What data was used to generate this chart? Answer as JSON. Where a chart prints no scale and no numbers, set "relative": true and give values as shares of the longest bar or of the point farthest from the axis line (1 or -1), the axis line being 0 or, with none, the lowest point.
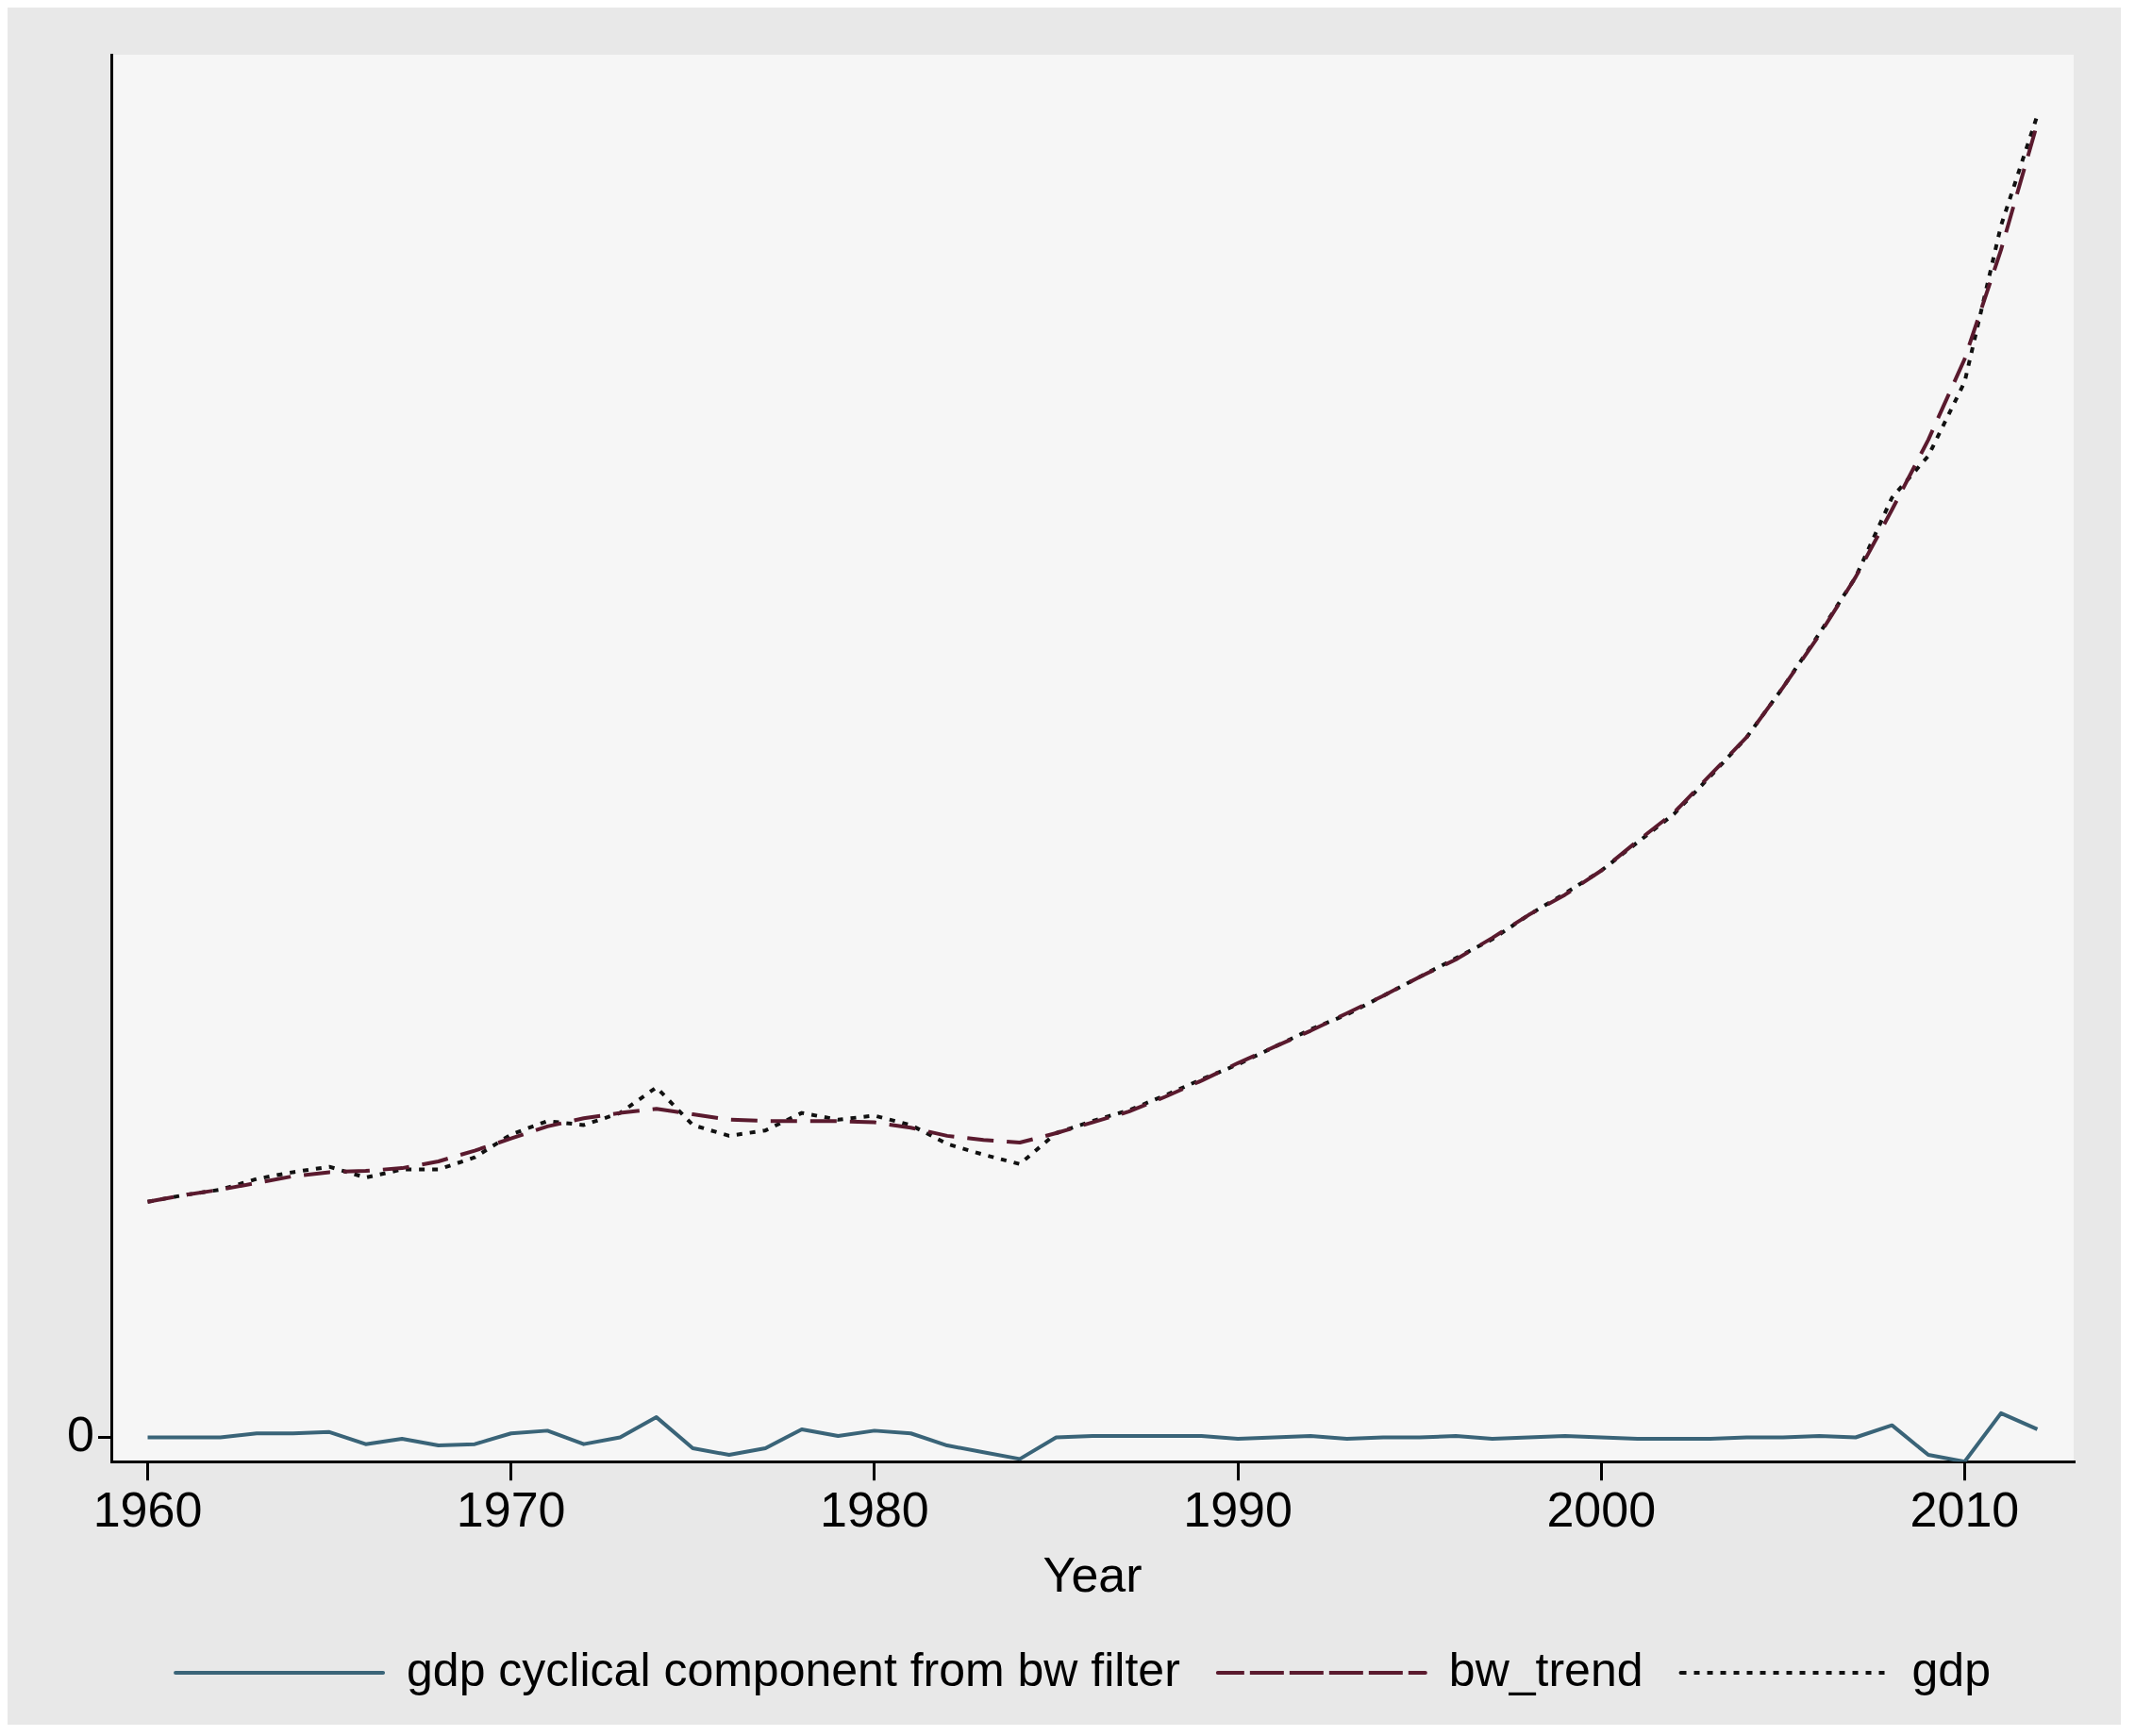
{
  "chart_data": {
    "type": "line",
    "relative": true,
    "xlabel": "Year",
    "x": [
      1960,
      1961,
      1962,
      1963,
      1964,
      1965,
      1966,
      1967,
      1968,
      1969,
      1970,
      1971,
      1972,
      1973,
      1974,
      1975,
      1976,
      1977,
      1978,
      1979,
      1980,
      1981,
      1982,
      1983,
      1984,
      1985,
      1986,
      1987,
      1988,
      1989,
      1990,
      1991,
      1992,
      1993,
      1994,
      1995,
      1996,
      1997,
      1998,
      1999,
      2000,
      2001,
      2002,
      2003,
      2004,
      2005,
      2006,
      2007,
      2008,
      2009,
      2010,
      2011,
      2012
    ],
    "xlim": [
      1959,
      2013
    ],
    "xticks": [
      1960,
      1970,
      1980,
      1990,
      2000,
      2010
    ],
    "annotations": [
      "0"
    ],
    "grid": false,
    "legend": "bottom",
    "marker": "none",
    "series": [
      {
        "name": "gdp cyclical component from bw filter",
        "color": "#3a6478",
        "line_style": "solid",
        "values": [
          0.018,
          0.018,
          0.018,
          0.021,
          0.021,
          0.022,
          0.013,
          0.017,
          0.012,
          0.013,
          0.021,
          0.023,
          0.013,
          0.018,
          0.033,
          0.01,
          0.005,
          0.01,
          0.024,
          0.019,
          0.023,
          0.021,
          0.012,
          0.007,
          0.002,
          0.018,
          0.019,
          0.019,
          0.019,
          0.019,
          0.017,
          0.018,
          0.019,
          0.017,
          0.018,
          0.018,
          0.019,
          0.017,
          0.018,
          0.019,
          0.018,
          0.017,
          0.017,
          0.017,
          0.018,
          0.018,
          0.019,
          0.018,
          0.027,
          0.005,
          0,
          0.036,
          0.024
        ]
      },
      {
        "name": "bw_trend",
        "color": "#5a1a2e",
        "line_style": "dashed",
        "values": [
          0.193,
          0.198,
          0.202,
          0.207,
          0.212,
          0.215,
          0.216,
          0.218,
          0.223,
          0.231,
          0.24,
          0.249,
          0.255,
          0.259,
          0.262,
          0.258,
          0.254,
          0.253,
          0.253,
          0.253,
          0.252,
          0.248,
          0.242,
          0.239,
          0.237,
          0.244,
          0.252,
          0.26,
          0.271,
          0.283,
          0.296,
          0.308,
          0.32,
          0.333,
          0.346,
          0.36,
          0.373,
          0.389,
          0.406,
          0.421,
          0.439,
          0.461,
          0.482,
          0.51,
          0.538,
          0.575,
          0.614,
          0.657,
          0.707,
          0.759,
          0.819,
          0.9,
          0.994
        ]
      },
      {
        "name": "gdp",
        "color": "#111111",
        "line_style": "dotted",
        "values": [
          0.193,
          0.198,
          0.202,
          0.21,
          0.215,
          0.219,
          0.211,
          0.217,
          0.217,
          0.226,
          0.243,
          0.253,
          0.25,
          0.259,
          0.278,
          0.25,
          0.242,
          0.246,
          0.259,
          0.254,
          0.257,
          0.25,
          0.236,
          0.228,
          0.221,
          0.244,
          0.253,
          0.261,
          0.272,
          0.284,
          0.295,
          0.308,
          0.321,
          0.332,
          0.346,
          0.36,
          0.374,
          0.388,
          0.406,
          0.422,
          0.439,
          0.46,
          0.481,
          0.509,
          0.538,
          0.575,
          0.615,
          0.657,
          0.716,
          0.747,
          0.802,
          0.918,
          1
        ]
      }
    ]
  }
}
